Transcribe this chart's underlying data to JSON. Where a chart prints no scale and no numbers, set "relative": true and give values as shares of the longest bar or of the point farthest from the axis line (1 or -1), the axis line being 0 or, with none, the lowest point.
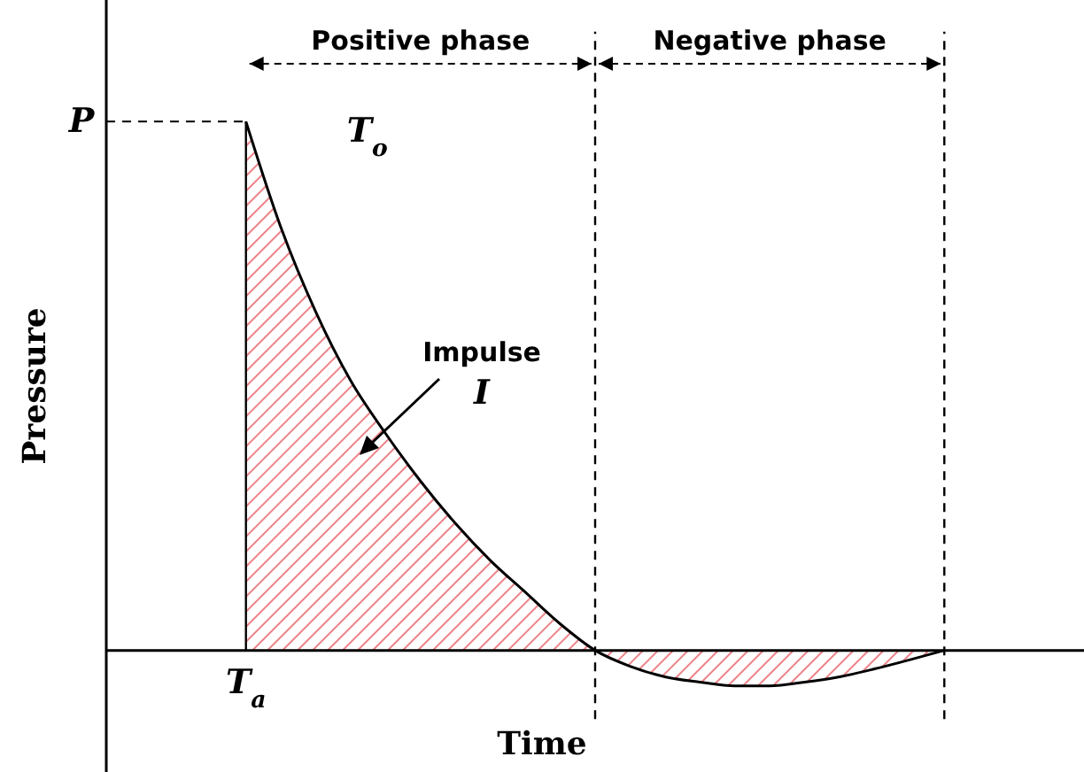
{
  "chart_data": {
    "type": "area",
    "relative": true,
    "xlabel": "Time",
    "ylabel": "Pressure",
    "categories": [
      null,
      null,
      null,
      null,
      null,
      null,
      null,
      null,
      null,
      null,
      null,
      null,
      null,
      null,
      null,
      null,
      null,
      null,
      null,
      null,
      null,
      null,
      null,
      null,
      null,
      null,
      null,
      null,
      null
    ],
    "series": [
      {
        "color": "#e0303a",
        "values": [
          null,
          null,
          null,
          null,
          1,
          0.8,
          0.64,
          0.51,
          0.41,
          0.32,
          0.24,
          0.17,
          0.11,
          0.05,
          0,
          -0.03,
          -0.05,
          -0.06,
          -0.067,
          -0.067,
          -0.06,
          -0.05,
          -0.035,
          -0.018,
          0,
          null,
          null,
          null,
          null
        ]
      }
    ],
    "ref_lines": [
      {
        "axis": "y",
        "value": 1,
        "label": "P",
        "line_style": "dashed"
      }
    ],
    "annotations": [
      "Positive phase",
      "Negative phase",
      "T$_{o}$",
      "Impulse",
      "I",
      "T$_{a}$"
    ]
  }
}
